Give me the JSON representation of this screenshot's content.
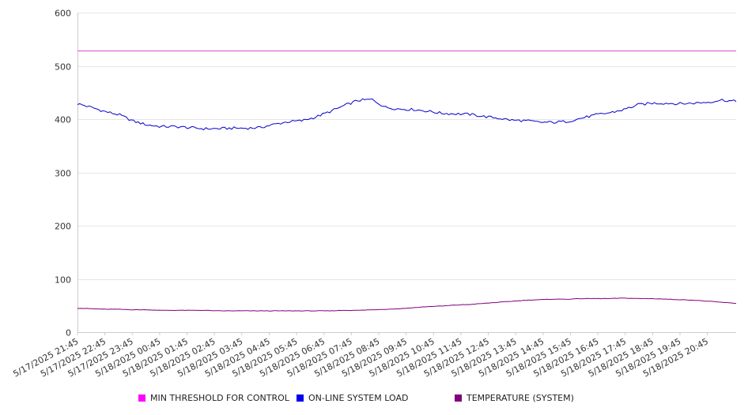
{
  "chart_data": {
    "type": "line",
    "title": "",
    "xlabel": "",
    "ylabel": "",
    "ylim": [
      0,
      600
    ],
    "yticks": [
      0,
      100,
      200,
      300,
      400,
      500,
      600
    ],
    "grid": true,
    "legend_position": "bottom",
    "x_tick_labels": [
      "5/17/2025 21:45",
      "5/17/2025 22:45",
      "5/17/2025 23:45",
      "5/18/2025 00:45",
      "5/18/2025 01:45",
      "5/18/2025 02:45",
      "5/18/2025 03:45",
      "5/18/2025 04:45",
      "5/18/2025 05:45",
      "5/18/2025 06:45",
      "5/18/2025 07:45",
      "5/18/2025 08:45",
      "5/18/2025 09:45",
      "5/18/2025 10:45",
      "5/18/2025 11:45",
      "5/18/2025 12:45",
      "5/18/2025 13:45",
      "5/18/2025 14:45",
      "5/18/2025 15:45",
      "5/18/2025 16:45",
      "5/18/2025 17:45",
      "5/18/2025 18:45",
      "5/18/2025 19:45",
      "5/18/2025 20:45"
    ],
    "x": [
      "5/17/2025 21:45",
      "5/17/2025 22:15",
      "5/17/2025 22:45",
      "5/17/2025 23:15",
      "5/17/2025 23:45",
      "5/18/2025 00:15",
      "5/18/2025 00:45",
      "5/18/2025 01:15",
      "5/18/2025 01:45",
      "5/18/2025 02:15",
      "5/18/2025 02:45",
      "5/18/2025 03:15",
      "5/18/2025 03:45",
      "5/18/2025 04:15",
      "5/18/2025 04:45",
      "5/18/2025 05:15",
      "5/18/2025 05:45",
      "5/18/2025 06:15",
      "5/18/2025 06:45",
      "5/18/2025 07:15",
      "5/18/2025 07:45",
      "5/18/2025 08:15",
      "5/18/2025 08:45",
      "5/18/2025 09:15",
      "5/18/2025 09:45",
      "5/18/2025 10:15",
      "5/18/2025 10:45",
      "5/18/2025 11:15",
      "5/18/2025 11:45",
      "5/18/2025 12:15",
      "5/18/2025 12:45",
      "5/18/2025 13:15",
      "5/18/2025 13:45",
      "5/18/2025 14:15",
      "5/18/2025 14:45",
      "5/18/2025 15:15",
      "5/18/2025 15:45",
      "5/18/2025 16:15",
      "5/18/2025 16:45",
      "5/18/2025 17:15",
      "5/18/2025 17:45",
      "5/18/2025 18:15",
      "5/18/2025 18:45",
      "5/18/2025 19:15",
      "5/18/2025 19:45",
      "5/18/2025 20:15",
      "5/18/2025 20:45",
      "5/18/2025 21:15"
    ],
    "series": [
      {
        "name": "MIN THRESHOLD FOR CONTROL",
        "color": "#d946cf",
        "values": [
          528,
          528,
          528,
          528,
          528,
          528,
          528,
          528,
          528,
          528,
          528,
          528,
          528,
          528,
          528,
          528,
          528,
          528,
          528,
          528,
          528,
          528,
          528,
          528,
          528,
          528,
          528,
          528,
          528,
          528,
          528,
          528,
          528,
          528,
          528,
          528,
          528,
          528,
          528,
          528,
          528,
          528,
          528,
          528,
          528,
          528,
          528,
          528
        ]
      },
      {
        "name": "ON-LINE SYSTEM LOAD",
        "color": "#0000cc",
        "values": [
          429,
          422,
          414,
          408,
          396,
          389,
          386,
          386,
          384,
          382,
          382,
          383,
          383,
          384,
          390,
          395,
          397,
          404,
          414,
          425,
          435,
          437,
          422,
          419,
          418,
          415,
          411,
          410,
          409,
          405,
          402,
          398,
          397,
          394,
          394,
          396,
          402,
          408,
          412,
          418,
          427,
          430,
          430,
          429,
          430,
          432,
          436,
          433
        ]
      },
      {
        "name": "TEMPERATURE (SYSTEM)",
        "color": "#800080",
        "values": [
          45,
          44,
          43,
          43,
          42,
          42,
          41,
          41,
          41,
          41,
          40,
          40,
          40,
          40,
          40,
          40,
          40,
          40,
          40,
          41,
          41,
          42,
          43,
          44,
          46,
          48,
          49,
          51,
          52,
          54,
          56,
          58,
          60,
          61,
          62,
          62,
          63,
          63,
          63,
          64,
          63,
          63,
          62,
          61,
          60,
          58,
          56,
          54
        ]
      }
    ]
  }
}
